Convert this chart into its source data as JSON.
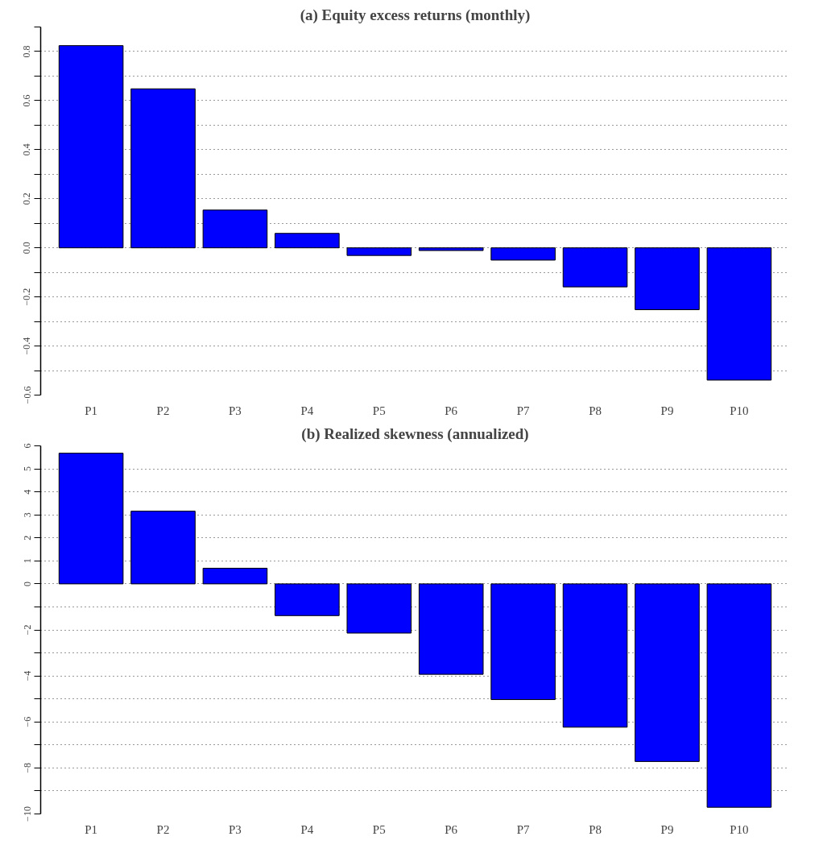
{
  "chart_data": [
    {
      "type": "bar",
      "title": "(a) Equity excess returns (monthly)",
      "categories": [
        "P1",
        "P2",
        "P3",
        "P4",
        "P5",
        "P6",
        "P7",
        "P8",
        "P9",
        "P10"
      ],
      "values": [
        0.824,
        0.648,
        0.154,
        0.059,
        -0.031,
        -0.011,
        -0.05,
        -0.159,
        -0.252,
        -0.539
      ],
      "color": "#0000ff",
      "ylim": [
        -0.6,
        0.9
      ],
      "yticks": [
        {
          "value": -0.6,
          "label": "−0.6"
        },
        {
          "value": -0.5,
          "label": null
        },
        {
          "value": -0.4,
          "label": "−0.4"
        },
        {
          "value": -0.3,
          "label": null
        },
        {
          "value": -0.2,
          "label": "−0.2"
        },
        {
          "value": -0.1,
          "label": null
        },
        {
          "value": 0,
          "label": "0.0"
        },
        {
          "value": 0.1,
          "label": null
        },
        {
          "value": 0.2,
          "label": "0.2"
        },
        {
          "value": 0.3,
          "label": null
        },
        {
          "value": 0.4,
          "label": "0.4"
        },
        {
          "value": 0.5,
          "label": null
        },
        {
          "value": 0.6,
          "label": "0.6"
        },
        {
          "value": 0.7,
          "label": null
        },
        {
          "value": 0.8,
          "label": "0.8"
        },
        {
          "value": 0.9,
          "label": null
        }
      ],
      "grid": "y"
    },
    {
      "type": "bar",
      "title": "(b) Realized skewness (annualized)",
      "categories": [
        "P1",
        "P2",
        "P3",
        "P4",
        "P5",
        "P6",
        "P7",
        "P8",
        "P9",
        "P10"
      ],
      "values": [
        5.68,
        3.16,
        0.68,
        -1.38,
        -2.14,
        -3.93,
        -5.03,
        -6.23,
        -7.72,
        -9.71
      ],
      "color": "#0000ff",
      "ylim": [
        -10,
        6
      ],
      "yticks": [
        {
          "value": -10,
          "label": "−10"
        },
        {
          "value": -9,
          "label": null
        },
        {
          "value": -8,
          "label": "−8"
        },
        {
          "value": -7,
          "label": null
        },
        {
          "value": -6,
          "label": "−6"
        },
        {
          "value": -5,
          "label": null
        },
        {
          "value": -4,
          "label": "−4"
        },
        {
          "value": -3,
          "label": null
        },
        {
          "value": -2,
          "label": "−2"
        },
        {
          "value": -1,
          "label": null
        },
        0,
        1,
        2,
        3,
        4,
        5,
        6
      ],
      "grid": "y"
    }
  ]
}
